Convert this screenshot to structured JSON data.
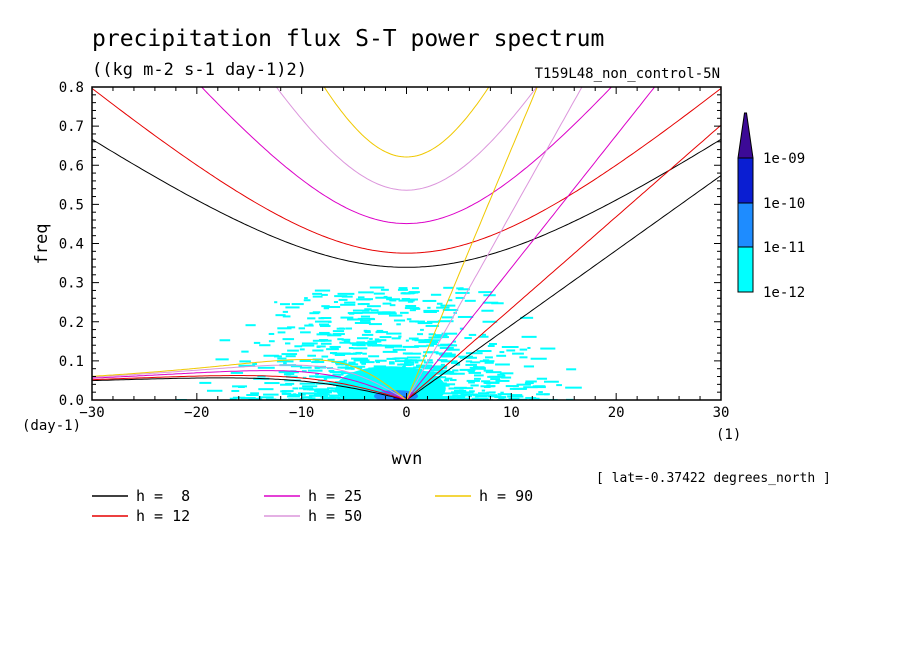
{
  "chart_data": {
    "type": "heatmap",
    "title": "precipitation flux S-T power spectrum",
    "subtitle": "((kg m-2 s-1 day-1)2)",
    "run_label": "T159L48_non_control-5N",
    "xlabel": "wvn",
    "ylabel": "freq",
    "x_unit": "(1)",
    "y_unit": "(day-1)",
    "xlim": [
      -30,
      30
    ],
    "ylim": [
      0,
      0.8
    ],
    "x_ticks": [
      -30,
      -20,
      -10,
      0,
      10,
      20,
      30
    ],
    "y_ticks": [
      0.0,
      0.1,
      0.2,
      0.3,
      0.4,
      0.5,
      0.6,
      0.7,
      0.8
    ],
    "x_ticks_text": [
      "−30",
      "−20",
      "−10",
      "0",
      "10",
      "20",
      "30"
    ],
    "y_ticks_text": [
      "0.0",
      "0.1",
      "0.2",
      "0.3",
      "0.4",
      "0.5",
      "0.6",
      "0.7",
      "0.8"
    ],
    "grid": false,
    "colorbar": {
      "labels": [
        "1e-12",
        "1e-11",
        "1e-10",
        "1e-09"
      ],
      "colors": [
        "#00ffff",
        "#1e8cff",
        "#0a1ed2",
        "#3c0a96"
      ]
    },
    "lat_note": "[ lat=-0.37422 degrees_north ]",
    "dispersion_curves": [
      {
        "name": "h =  8",
        "h": 8,
        "color": "#000000"
      },
      {
        "name": "h = 12",
        "h": 12,
        "color": "#e60000"
      },
      {
        "name": "h = 25",
        "h": 25,
        "color": "#dc00c8"
      },
      {
        "name": "h = 50",
        "h": 50,
        "color": "#dc96dc"
      },
      {
        "name": "h = 90",
        "h": 90,
        "color": "#f0c800"
      }
    ],
    "power_region": {
      "description_values": "low-frequency power (1e-12 to 1e-10) concentrated near wvn -12 to 12, freq 0 to 0.29, peak near wvn -2, freq < 0.03"
    }
  }
}
